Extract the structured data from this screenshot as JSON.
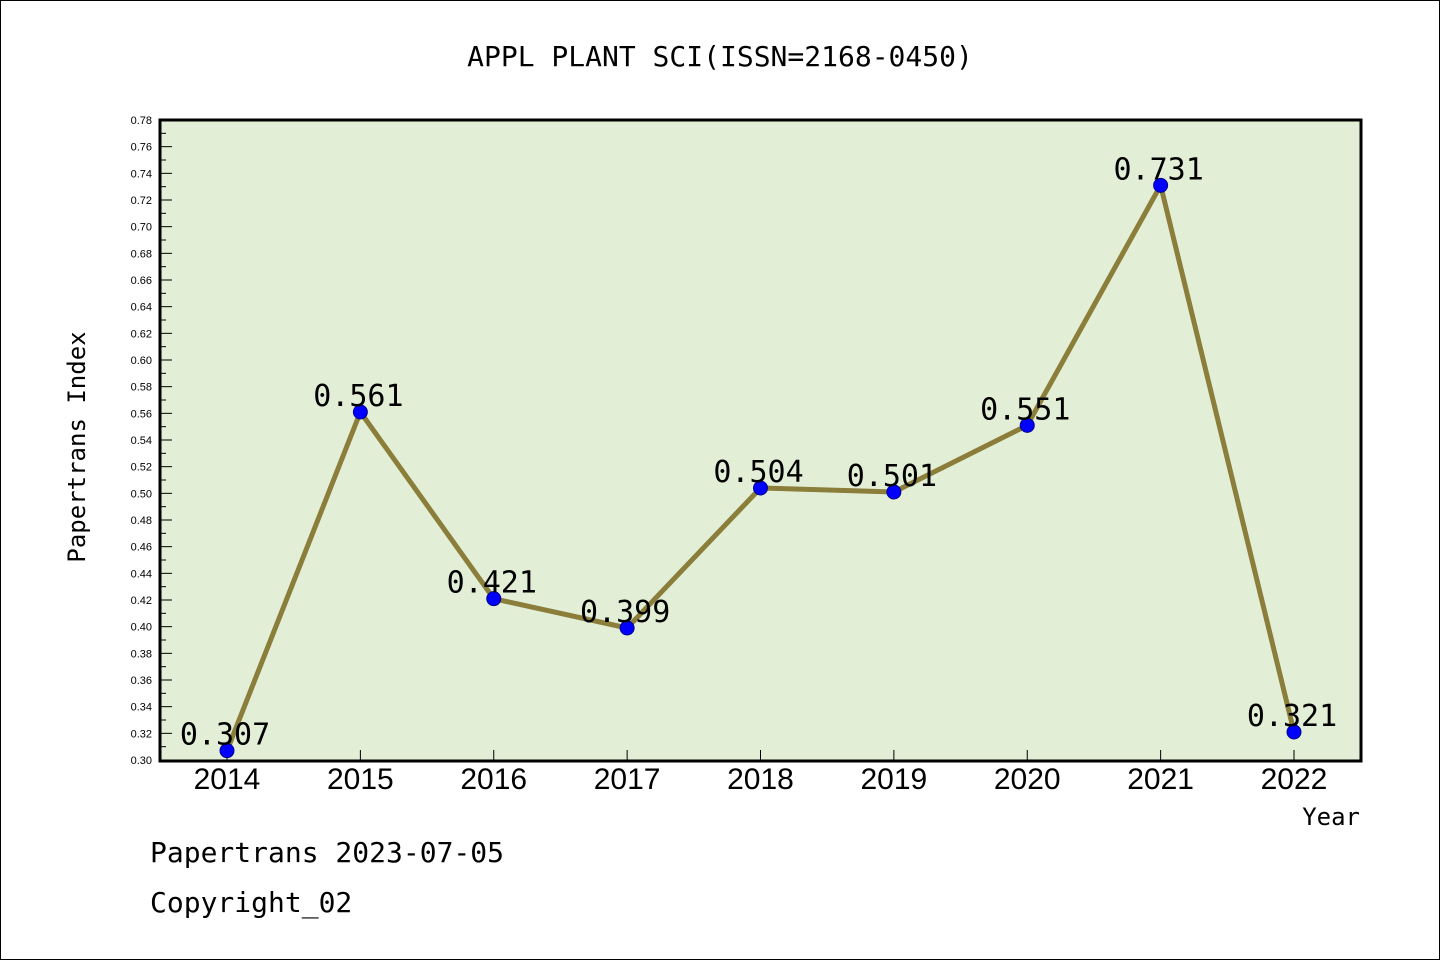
{
  "chart_data": {
    "type": "line",
    "title": "APPL PLANT SCI(ISSN=2168-0450)",
    "xlabel": "Year",
    "ylabel": "Papertrans Index",
    "categories": [
      "2014",
      "2015",
      "2016",
      "2017",
      "2018",
      "2019",
      "2020",
      "2021",
      "2022"
    ],
    "values": [
      0.307,
      0.561,
      0.421,
      0.399,
      0.504,
      0.501,
      0.551,
      0.731,
      0.321
    ],
    "data_labels": [
      "0.307",
      "0.561",
      "0.421",
      "0.399",
      "0.504",
      "0.501",
      "0.551",
      "0.731",
      "0.321"
    ],
    "ylim": [
      0.3,
      0.78
    ],
    "yticks": [
      "0.30",
      "0.32",
      "0.34",
      "0.36",
      "0.38",
      "0.40",
      "0.42",
      "0.44",
      "0.46",
      "0.48",
      "0.50",
      "0.52",
      "0.54",
      "0.56",
      "0.58",
      "0.60",
      "0.62",
      "0.64",
      "0.66",
      "0.68",
      "0.70",
      "0.72",
      "0.74",
      "0.76",
      "0.78"
    ],
    "grid": false,
    "colors": {
      "line": "#8b7d3a",
      "marker": "#0000ff",
      "plot_background": "#e2efd6"
    }
  },
  "footer": {
    "line1": "Papertrans 2023-07-05",
    "line2": "Copyright_02"
  }
}
